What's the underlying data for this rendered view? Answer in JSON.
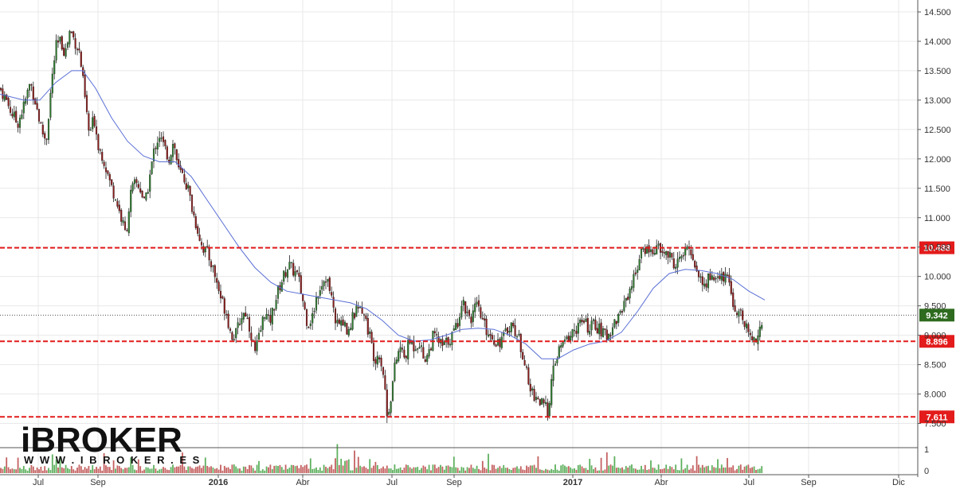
{
  "chart_data": {
    "type": "candlestick",
    "y_axis": {
      "range": [
        7.2,
        14.6
      ],
      "ticks": [
        "14.500",
        "14.000",
        "13.500",
        "13.000",
        "12.500",
        "12.000",
        "11.500",
        "11.000",
        "10.500",
        "10.000",
        "9.500",
        "9.000",
        "8.500",
        "8.000",
        "7.500"
      ],
      "tick_values": [
        14.5,
        14.0,
        13.5,
        13.0,
        12.5,
        12.0,
        11.5,
        11.0,
        10.5,
        10.0,
        9.5,
        9.0,
        8.5,
        8.0,
        7.5
      ],
      "side": "right"
    },
    "x_axis": {
      "labels": [
        "Jul",
        "Sep",
        "2016",
        "Abr",
        "Jul",
        "Sep",
        "2017",
        "Abr",
        "Jul",
        "Sep",
        "Dic"
      ],
      "bold_labels": [
        "2016",
        "2017"
      ]
    },
    "horizontal_levels": [
      {
        "label": "10.488",
        "value": 10.488,
        "color": "#e31b1b",
        "style": "dashed"
      },
      {
        "label": "9.342",
        "value": 9.342,
        "color": "#2e6b1f",
        "style": "dotted"
      },
      {
        "label": "8.896",
        "value": 8.896,
        "color": "#e31b1b",
        "style": "dashed"
      },
      {
        "label": "7.611",
        "value": 7.611,
        "color": "#e31b1b",
        "style": "dashed"
      }
    ],
    "price_path": [
      [
        0,
        13.2
      ],
      [
        8,
        13.0
      ],
      [
        14,
        12.8
      ],
      [
        22,
        12.6
      ],
      [
        30,
        12.9
      ],
      [
        38,
        13.3
      ],
      [
        44,
        13.0
      ],
      [
        52,
        12.5
      ],
      [
        58,
        12.3
      ],
      [
        64,
        13.2
      ],
      [
        70,
        13.9
      ],
      [
        76,
        14.0
      ],
      [
        82,
        13.8
      ],
      [
        88,
        14.2
      ],
      [
        94,
        14.0
      ],
      [
        100,
        13.8
      ],
      [
        106,
        13.1
      ],
      [
        112,
        12.4
      ],
      [
        118,
        12.7
      ],
      [
        124,
        12.2
      ],
      [
        130,
        12.0
      ],
      [
        138,
        11.6
      ],
      [
        146,
        11.3
      ],
      [
        152,
        11.0
      ],
      [
        158,
        10.7
      ],
      [
        164,
        11.4
      ],
      [
        170,
        11.6
      ],
      [
        176,
        11.5
      ],
      [
        182,
        11.2
      ],
      [
        188,
        11.7
      ],
      [
        194,
        12.2
      ],
      [
        200,
        12.4
      ],
      [
        206,
        12.2
      ],
      [
        212,
        12.0
      ],
      [
        218,
        12.3
      ],
      [
        224,
        11.8
      ],
      [
        230,
        11.7
      ],
      [
        236,
        11.5
      ],
      [
        242,
        11.1
      ],
      [
        248,
        10.8
      ],
      [
        254,
        10.5
      ],
      [
        260,
        10.4
      ],
      [
        266,
        10.2
      ],
      [
        272,
        9.9
      ],
      [
        278,
        9.6
      ],
      [
        284,
        9.4
      ],
      [
        290,
        9.0
      ],
      [
        296,
        9.0
      ],
      [
        302,
        9.3
      ],
      [
        308,
        9.4
      ],
      [
        314,
        9.1
      ],
      [
        320,
        8.7
      ],
      [
        326,
        9.0
      ],
      [
        332,
        9.4
      ],
      [
        338,
        9.2
      ],
      [
        344,
        9.5
      ],
      [
        350,
        9.8
      ],
      [
        356,
        10.0
      ],
      [
        362,
        10.2
      ],
      [
        368,
        10.1
      ],
      [
        374,
        10.0
      ],
      [
        380,
        9.6
      ],
      [
        386,
        9.2
      ],
      [
        392,
        9.3
      ],
      [
        398,
        9.7
      ],
      [
        404,
        9.9
      ],
      [
        410,
        10.0
      ],
      [
        416,
        9.6
      ],
      [
        422,
        9.2
      ],
      [
        428,
        9.3
      ],
      [
        434,
        9.1
      ],
      [
        440,
        9.2
      ],
      [
        446,
        9.4
      ],
      [
        452,
        9.6
      ],
      [
        458,
        9.3
      ],
      [
        464,
        9.0
      ],
      [
        470,
        8.6
      ],
      [
        476,
        8.7
      ],
      [
        482,
        8.3
      ],
      [
        486,
        7.6
      ],
      [
        490,
        7.9
      ],
      [
        496,
        8.5
      ],
      [
        502,
        8.8
      ],
      [
        508,
        8.6
      ],
      [
        514,
        8.9
      ],
      [
        520,
        8.8
      ],
      [
        526,
        8.9
      ],
      [
        532,
        8.6
      ],
      [
        538,
        8.7
      ],
      [
        544,
        9.0
      ],
      [
        550,
        8.9
      ],
      [
        556,
        8.8
      ],
      [
        562,
        8.9
      ],
      [
        568,
        9.0
      ],
      [
        574,
        9.2
      ],
      [
        580,
        9.6
      ],
      [
        586,
        9.4
      ],
      [
        592,
        9.3
      ],
      [
        598,
        9.5
      ],
      [
        604,
        9.3
      ],
      [
        610,
        9.1
      ],
      [
        616,
        9.0
      ],
      [
        622,
        8.9
      ],
      [
        628,
        8.9
      ],
      [
        634,
        9.0
      ],
      [
        640,
        9.2
      ],
      [
        646,
        9.1
      ],
      [
        652,
        8.9
      ],
      [
        658,
        8.6
      ],
      [
        664,
        8.1
      ],
      [
        670,
        8.0
      ],
      [
        676,
        7.9
      ],
      [
        682,
        7.8
      ],
      [
        688,
        7.7
      ],
      [
        692,
        8.2
      ],
      [
        698,
        8.6
      ],
      [
        704,
        8.8
      ],
      [
        710,
        8.9
      ],
      [
        716,
        9.0
      ],
      [
        722,
        9.1
      ],
      [
        728,
        9.2
      ],
      [
        734,
        9.2
      ],
      [
        740,
        9.1
      ],
      [
        746,
        9.2
      ],
      [
        752,
        9.1
      ],
      [
        758,
        9.0
      ],
      [
        764,
        9.0
      ],
      [
        770,
        9.2
      ],
      [
        776,
        9.3
      ],
      [
        782,
        9.5
      ],
      [
        788,
        9.7
      ],
      [
        794,
        9.9
      ],
      [
        800,
        10.2
      ],
      [
        806,
        10.4
      ],
      [
        812,
        10.5
      ],
      [
        818,
        10.4
      ],
      [
        824,
        10.5
      ],
      [
        830,
        10.4
      ],
      [
        836,
        10.4
      ],
      [
        842,
        10.3
      ],
      [
        848,
        10.2
      ],
      [
        854,
        10.3
      ],
      [
        860,
        10.4
      ],
      [
        866,
        10.5
      ],
      [
        872,
        10.2
      ],
      [
        878,
        10.0
      ],
      [
        884,
        9.8
      ],
      [
        890,
        10.0
      ],
      [
        896,
        10.0
      ],
      [
        902,
        9.9
      ],
      [
        908,
        10.0
      ],
      [
        914,
        9.9
      ],
      [
        920,
        9.6
      ],
      [
        926,
        9.4
      ],
      [
        932,
        9.3
      ],
      [
        938,
        9.1
      ],
      [
        944,
        8.9
      ],
      [
        950,
        9.0
      ],
      [
        956,
        9.2
      ],
      [
        960,
        9.342
      ]
    ],
    "moving_average": [
      [
        0,
        13.1
      ],
      [
        30,
        13.0
      ],
      [
        50,
        13.0
      ],
      [
        70,
        13.3
      ],
      [
        90,
        13.5
      ],
      [
        104,
        13.5
      ],
      [
        120,
        13.2
      ],
      [
        140,
        12.7
      ],
      [
        160,
        12.3
      ],
      [
        180,
        12.05
      ],
      [
        200,
        11.95
      ],
      [
        220,
        11.95
      ],
      [
        240,
        11.7
      ],
      [
        260,
        11.3
      ],
      [
        280,
        10.9
      ],
      [
        300,
        10.5
      ],
      [
        320,
        10.15
      ],
      [
        340,
        9.9
      ],
      [
        360,
        9.75
      ],
      [
        380,
        9.7
      ],
      [
        400,
        9.65
      ],
      [
        420,
        9.6
      ],
      [
        440,
        9.55
      ],
      [
        460,
        9.45
      ],
      [
        480,
        9.25
      ],
      [
        500,
        9.0
      ],
      [
        520,
        8.9
      ],
      [
        540,
        8.92
      ],
      [
        560,
        9.0
      ],
      [
        580,
        9.1
      ],
      [
        600,
        9.12
      ],
      [
        620,
        9.1
      ],
      [
        640,
        9.0
      ],
      [
        660,
        8.85
      ],
      [
        680,
        8.6
      ],
      [
        700,
        8.6
      ],
      [
        720,
        8.75
      ],
      [
        740,
        8.85
      ],
      [
        760,
        8.9
      ],
      [
        780,
        9.05
      ],
      [
        800,
        9.4
      ],
      [
        820,
        9.8
      ],
      [
        840,
        10.05
      ],
      [
        860,
        10.12
      ],
      [
        880,
        10.1
      ],
      [
        900,
        10.05
      ],
      [
        920,
        9.95
      ],
      [
        940,
        9.75
      ],
      [
        960,
        9.6
      ]
    ],
    "colors": {
      "up": "#2d7a2d",
      "down": "#8b1a1a",
      "ma": "#5a6fd6",
      "level": "#e31b1b",
      "current": "#2e6b1f",
      "grid": "#e8e8e8"
    }
  },
  "logo": {
    "main": "iBROKER",
    "sub": "W W W . I B R O K E R . E S"
  }
}
